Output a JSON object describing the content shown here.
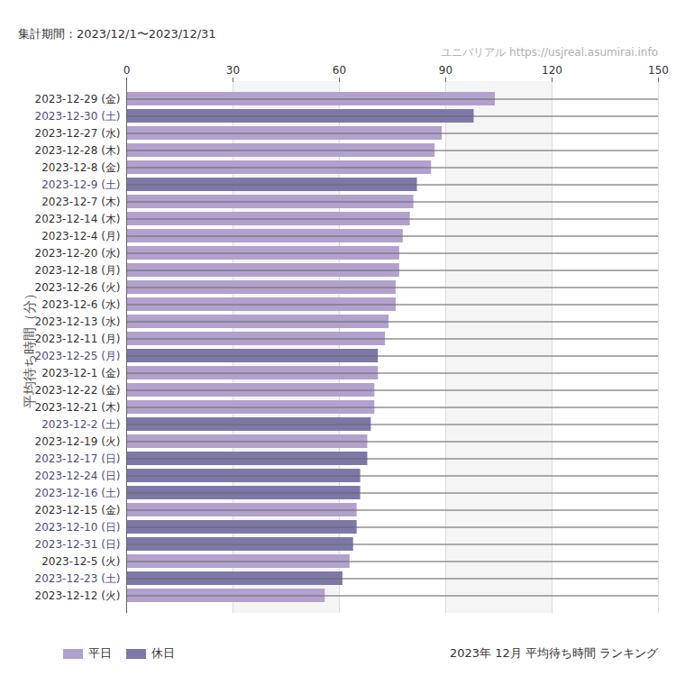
{
  "chart_data": {
    "type": "bar",
    "orientation": "horizontal",
    "title": "2023年 12月 平均待ち時間 ランキング",
    "subtitle": "集計期間：2023/12/1〜2023/12/31",
    "source": "ユニバリアル  https://usjreal.asumirai.info",
    "y_label": "平均待ち時間（分）",
    "categories": [
      "2023-12-29 (金)",
      "2023-12-30 (土)",
      "2023-12-27 (水)",
      "2023-12-28 (木)",
      "2023-12-8 (金)",
      "2023-12-9 (土)",
      "2023-12-7 (木)",
      "2023-12-14 (木)",
      "2023-12-4 (月)",
      "2023-12-20 (水)",
      "2023-12-18 (月)",
      "2023-12-26 (火)",
      "2023-12-6 (水)",
      "2023-12-13 (水)",
      "2023-12-11 (月)",
      "2023-12-25 (月)",
      "2023-12-1 (金)",
      "2023-12-22 (金)",
      "2023-12-21 (木)",
      "2023-12-2 (土)",
      "2023-12-19 (火)",
      "2023-12-17 (日)",
      "2023-12-24 (日)",
      "2023-12-16 (土)",
      "2023-12-15 (金)",
      "2023-12-10 (日)",
      "2023-12-31 (日)",
      "2023-12-5 (火)",
      "2023-12-23 (土)",
      "2023-12-12 (火)"
    ],
    "series": [
      {
        "name": "平日",
        "color": "#b3a1cd",
        "values": [
          104,
          null,
          89,
          87,
          86,
          null,
          81,
          80,
          78,
          77,
          77,
          76,
          76,
          74,
          73,
          null,
          71,
          70,
          70,
          null,
          68,
          null,
          null,
          null,
          65,
          null,
          null,
          63,
          null,
          56
        ]
      },
      {
        "name": "休日",
        "color": "#7e78a8",
        "values": [
          null,
          98,
          null,
          null,
          null,
          82,
          null,
          null,
          null,
          null,
          null,
          null,
          null,
          null,
          null,
          71,
          null,
          null,
          null,
          69,
          null,
          68,
          66,
          66,
          null,
          65,
          64,
          null,
          61,
          null
        ]
      }
    ],
    "xlim": [
      0,
      150
    ],
    "xticks": [
      0,
      30,
      60,
      90,
      120,
      150
    ],
    "grid": true,
    "legend": "bottom-left"
  }
}
